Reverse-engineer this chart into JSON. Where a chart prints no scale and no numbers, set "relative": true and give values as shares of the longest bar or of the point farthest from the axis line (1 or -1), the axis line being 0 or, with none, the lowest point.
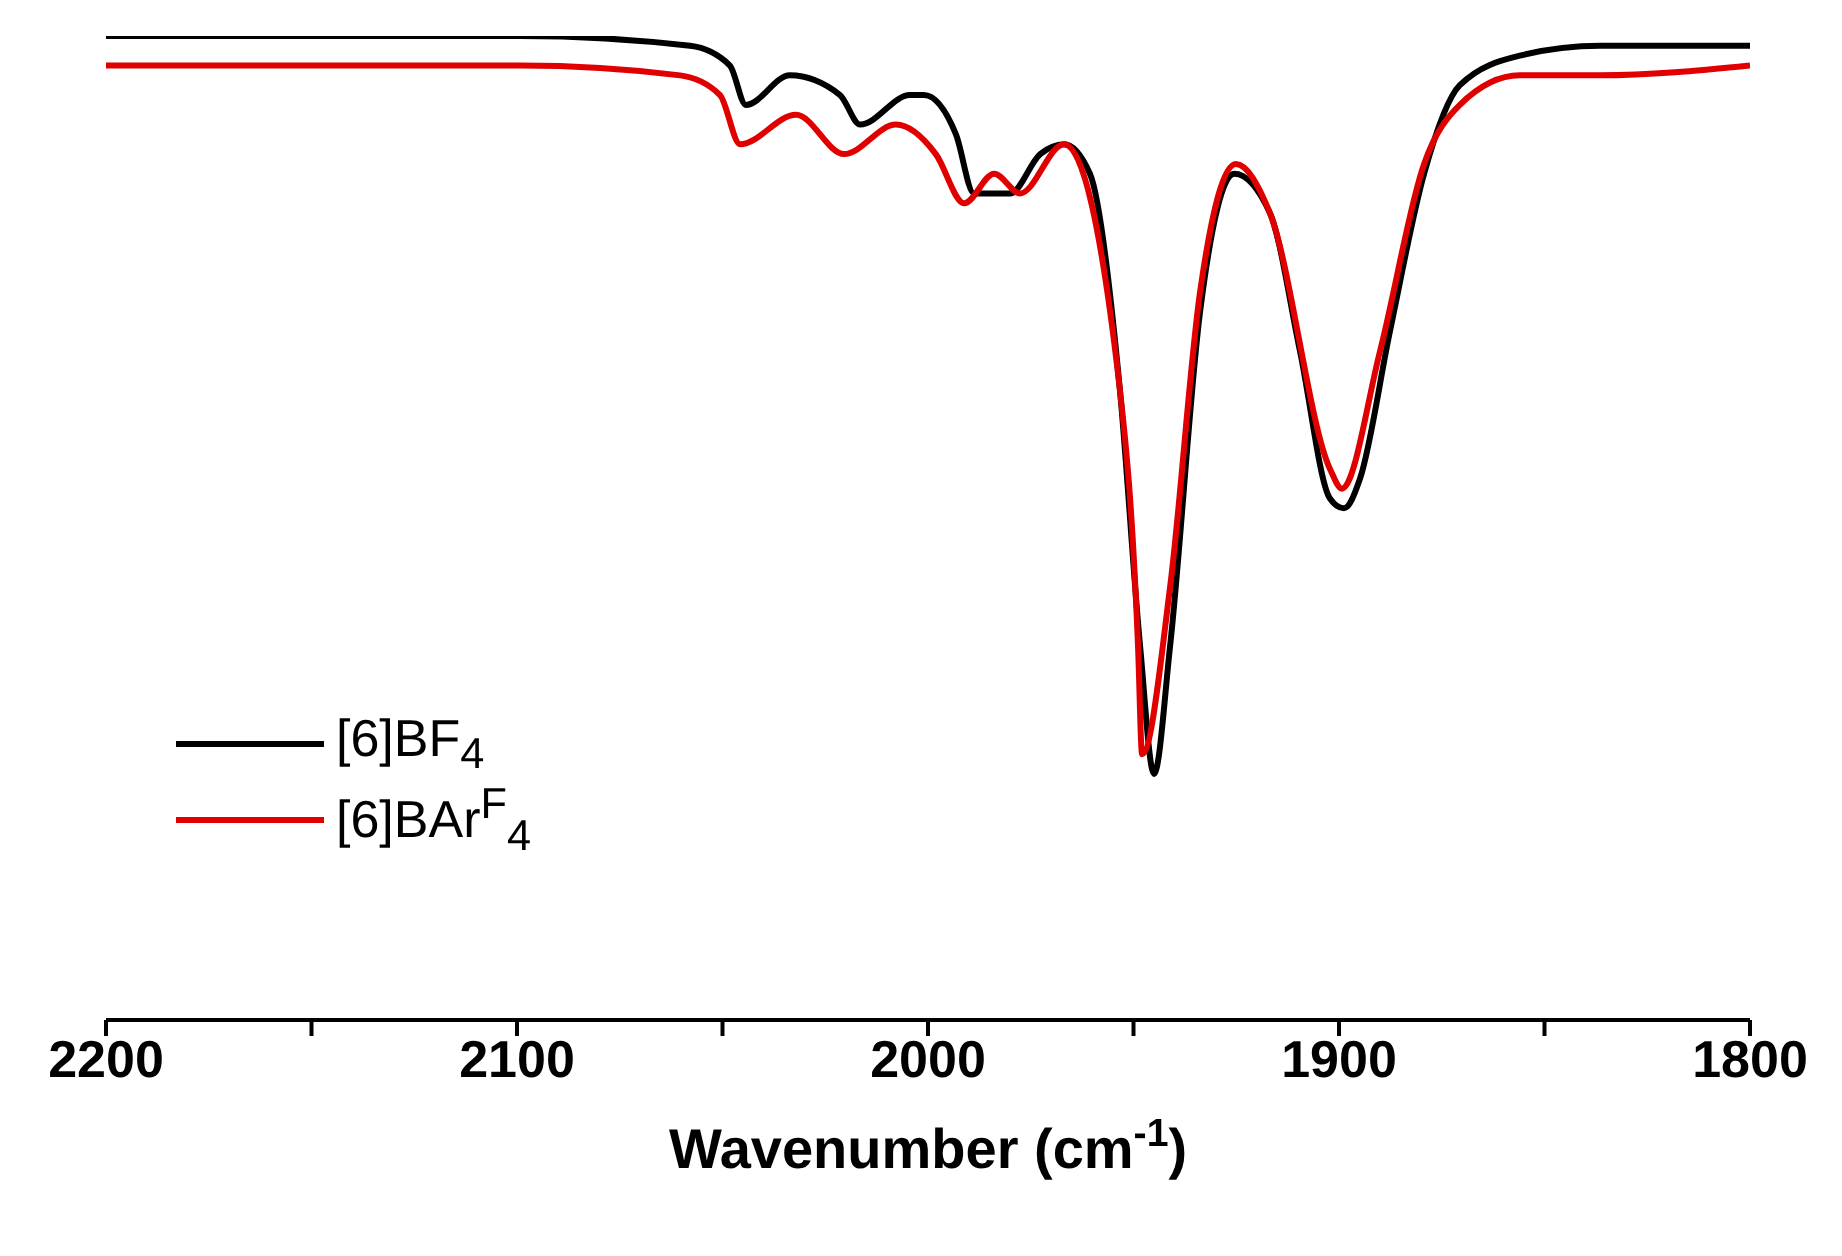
{
  "chart_data": {
    "type": "line",
    "relative": true,
    "xlabel": "Wavenumber (cm$^{-1}$)",
    "xlim": [
      2200,
      1800
    ],
    "xticks": [
      2200,
      {
        "value": 2150,
        "label": null
      },
      2100,
      {
        "value": 2050,
        "label": null
      },
      2000,
      {
        "value": 1950,
        "label": null
      },
      1900,
      {
        "value": 1850,
        "label": null
      },
      1800
    ],
    "legend": "bottom left",
    "grid": false,
    "marker": "none",
    "line_style": "solid",
    "series": [
      {
        "name": "[6]BF$_{4}$",
        "color": "#000000",
        "x": [
          2200,
          2128.5,
          2099.3,
          2057.9,
          2048.2,
          2044.3,
          2033.6,
          2021.4,
          2016.5,
          2004.4,
          2001.0,
          1993.2,
          1988.8,
          1980.0,
          1972.7,
          1966.9,
          1960.6,
          1953.3,
          1948.4,
          1945.0,
          1941.1,
          1933.8,
          1925.5,
          1916.8,
          1909.5,
          1902.2,
          1898.8,
          1894.9,
          1887.6,
          1879.3,
          1870.6,
          1856.0,
          1836.5,
          1800
        ],
        "values": [
          1.0,
          1.0,
          1.0,
          0.99,
          0.97,
          0.93,
          0.96,
          0.94,
          0.91,
          0.94,
          0.94,
          0.9,
          0.84,
          0.84,
          0.88,
          0.89,
          0.86,
          0.64,
          0.38,
          0.25,
          0.38,
          0.72,
          0.86,
          0.82,
          0.68,
          0.53,
          0.52,
          0.55,
          0.7,
          0.86,
          0.95,
          0.98,
          0.99,
          0.99
        ]
      },
      {
        "name": "[6]BAr$^{F}$$_{4}$",
        "color": "#e00000",
        "x": [
          2200,
          2099.3,
          2060.3,
          2050.6,
          2045.7,
          2032.1,
          2020.4,
          2007.8,
          1998.1,
          1991.2,
          1983.9,
          1977.6,
          1966.9,
          1953.3,
          1948.9,
          1947.9,
          1941.1,
          1933.8,
          1925.1,
          1916.8,
          1902.2,
          1899.3,
          1890.0,
          1879.3,
          1870.6,
          1856.0,
          1836.5,
          1800
        ],
        "values": [
          0.97,
          0.97,
          0.96,
          0.94,
          0.89,
          0.92,
          0.88,
          0.91,
          0.88,
          0.83,
          0.86,
          0.84,
          0.89,
          0.64,
          0.38,
          0.27,
          0.44,
          0.74,
          0.87,
          0.82,
          0.56,
          0.54,
          0.68,
          0.87,
          0.93,
          0.96,
          0.96,
          0.97
        ]
      }
    ]
  }
}
